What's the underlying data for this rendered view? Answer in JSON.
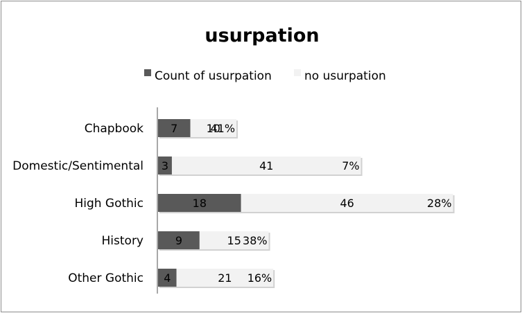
{
  "chart_data": {
    "type": "bar",
    "orientation": "horizontal",
    "stacked": true,
    "title": "usurpation",
    "categories": [
      "Chapbook",
      "Domestic/Sentimental",
      "High Gothic",
      "History",
      "Other Gothic"
    ],
    "series": [
      {
        "name": "Count of usurpation",
        "values": [
          7,
          3,
          18,
          9,
          4
        ],
        "color": "#595959"
      },
      {
        "name": "no usurpation",
        "values": [
          10,
          41,
          46,
          15,
          21
        ],
        "color": "#f2f2f2"
      }
    ],
    "percent_labels": [
      "41%",
      "7%",
      "28%",
      "38%",
      "16%"
    ],
    "legend_position": "top",
    "grid": false
  }
}
